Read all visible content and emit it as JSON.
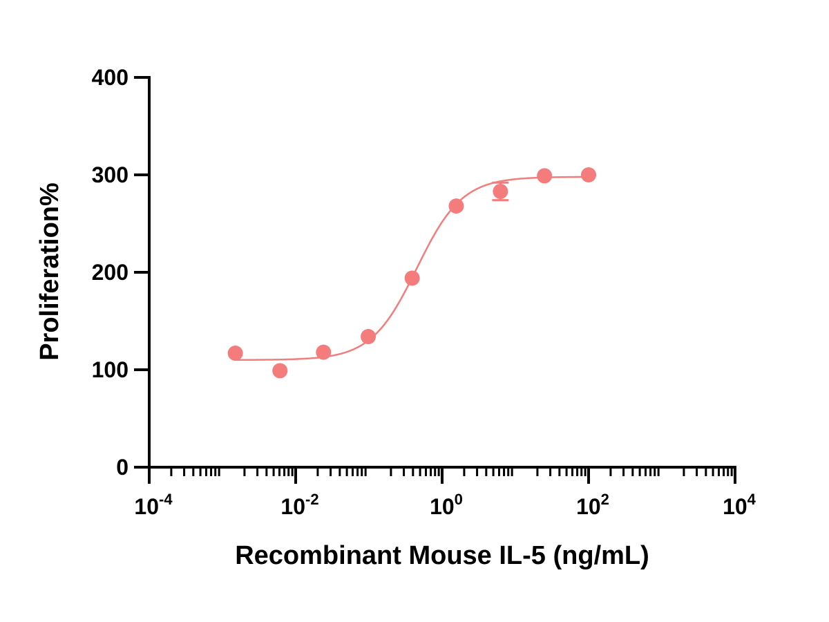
{
  "chart_data": {
    "type": "scatter",
    "xscale": "log",
    "xlabel": "Recombinant Mouse  IL-5 (ng/mL)",
    "ylabel": "Proliferation%",
    "xlim": [
      0.0001,
      10000
    ],
    "ylim": [
      0,
      400
    ],
    "yticks": [
      0,
      100,
      200,
      300,
      400
    ],
    "xticks": [
      {
        "value": 0.0001,
        "base": "10",
        "exp": "-4"
      },
      {
        "value": 0.01,
        "base": "10",
        "exp": "-2"
      },
      {
        "value": 1,
        "base": "10",
        "exp": "0"
      },
      {
        "value": 100,
        "base": "10",
        "exp": "2"
      },
      {
        "value": 10000,
        "base": "10",
        "exp": "4"
      }
    ],
    "grid": false,
    "series": [
      {
        "color": "#f47c7c",
        "points": [
          {
            "x": 0.0015,
            "y": 117,
            "err": 0
          },
          {
            "x": 0.0061,
            "y": 99,
            "err": 0
          },
          {
            "x": 0.024,
            "y": 118,
            "err": 0
          },
          {
            "x": 0.098,
            "y": 134,
            "err": 0
          },
          {
            "x": 0.39,
            "y": 194,
            "err": 0
          },
          {
            "x": 1.56,
            "y": 268,
            "err": 0
          },
          {
            "x": 6.25,
            "y": 283,
            "err": 9
          },
          {
            "x": 25,
            "y": 299,
            "err": 0
          },
          {
            "x": 100,
            "y": 300,
            "err": 0
          }
        ],
        "fit": {
          "type": "4PL",
          "bottom": 110,
          "top": 298,
          "ec50": 0.45,
          "hill": 1.4,
          "xrange": [
            0.0015,
            100
          ]
        }
      }
    ]
  }
}
